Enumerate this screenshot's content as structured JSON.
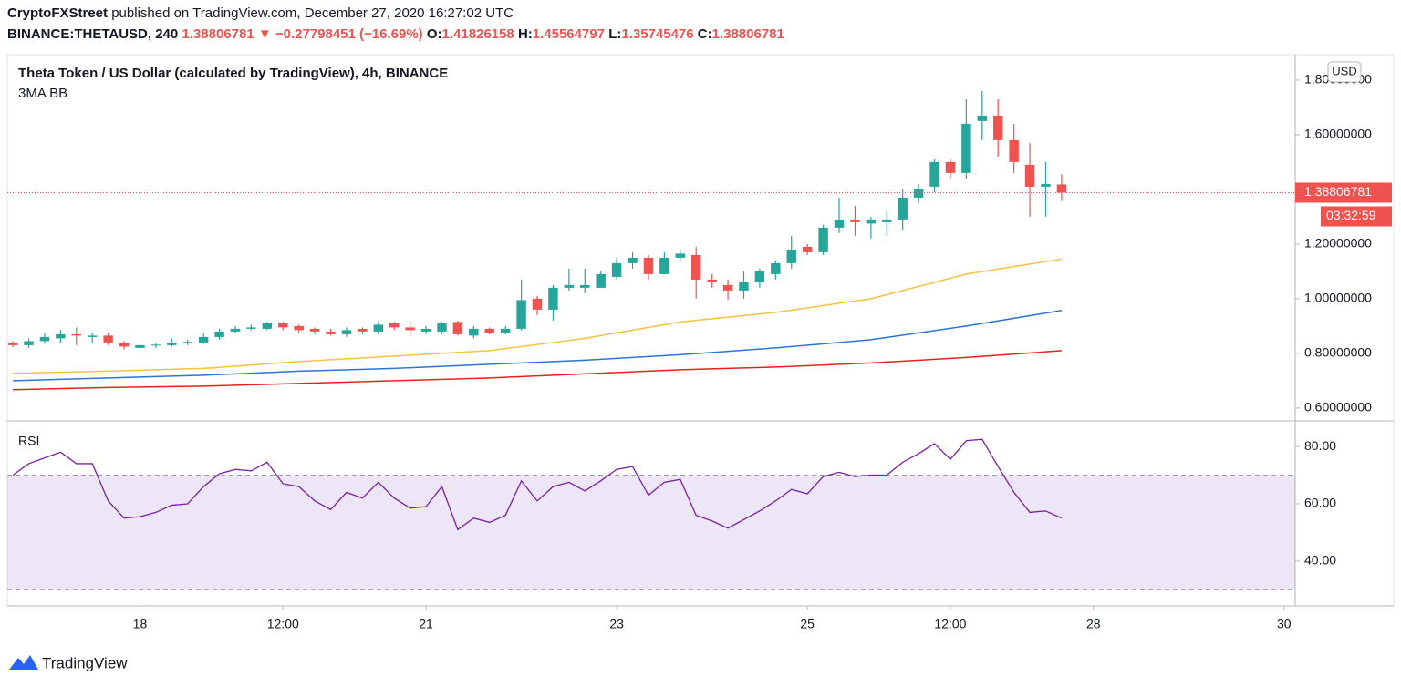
{
  "header": {
    "publisher": "CryptoFXStreet",
    "published": "published on TradingView.com, December 27, 2020 16:27:02 UTC",
    "symbol": "BINANCE:THETAUSD, 240",
    "last": "1.38806781",
    "change": "▼ −0.27798451 (−16.69%)",
    "ohlc_labels": [
      "O:",
      "H:",
      "L:",
      "C:"
    ]
  },
  "footer": {
    "brand": "TradingView"
  },
  "chart_data": [
    {
      "type": "candlestick",
      "title": "Theta Token / US Dollar (calculated by TradingView), 4h, BINANCE",
      "subtitle": "3MA BB",
      "currency": "USD",
      "last_label": "1.38806781",
      "countdown": "03:32:59",
      "up_color": "#26a69a",
      "down_color": "#ef5350",
      "grid": false,
      "open": [
        0.84,
        0.83,
        0.845,
        0.855,
        0.87,
        0.86,
        0.865,
        0.84,
        0.82,
        0.83,
        0.83,
        0.84,
        0.84,
        0.86,
        0.88,
        0.89,
        0.89,
        0.91,
        0.9,
        0.89,
        0.88,
        0.87,
        0.89,
        0.88,
        0.91,
        0.895,
        0.88,
        0.88,
        0.915,
        0.865,
        0.89,
        0.875,
        0.89,
        1.0,
        0.96,
        1.04,
        1.04,
        1.04,
        1.08,
        1.13,
        1.15,
        1.09,
        1.15,
        1.16,
        1.07,
        1.05,
        1.03,
        1.06,
        1.09,
        1.13,
        1.19,
        1.17,
        1.26,
        1.29,
        1.275,
        1.28,
        1.29,
        1.37,
        1.41,
        1.5,
        1.46,
        1.65,
        1.67,
        1.58,
        1.49,
        1.41,
        1.41826158
      ],
      "high": [
        0.845,
        0.855,
        0.875,
        0.885,
        0.895,
        0.875,
        0.875,
        0.845,
        0.84,
        0.84,
        0.855,
        0.85,
        0.875,
        0.89,
        0.9,
        0.905,
        0.915,
        0.915,
        0.905,
        0.895,
        0.89,
        0.895,
        0.895,
        0.915,
        0.915,
        0.92,
        0.9,
        0.915,
        0.92,
        0.9,
        0.895,
        0.9,
        1.07,
        1.01,
        1.05,
        1.11,
        1.11,
        1.1,
        1.15,
        1.17,
        1.16,
        1.17,
        1.18,
        1.19,
        1.09,
        1.07,
        1.1,
        1.11,
        1.14,
        1.23,
        1.2,
        1.27,
        1.37,
        1.34,
        1.3,
        1.32,
        1.4,
        1.42,
        1.51,
        1.51,
        1.73,
        1.76,
        1.73,
        1.64,
        1.57,
        1.5,
        1.45564797
      ],
      "low": [
        0.823,
        0.82,
        0.835,
        0.84,
        0.83,
        0.84,
        0.83,
        0.815,
        0.81,
        0.82,
        0.825,
        0.83,
        0.835,
        0.85,
        0.875,
        0.885,
        0.885,
        0.885,
        0.875,
        0.87,
        0.865,
        0.86,
        0.87,
        0.87,
        0.885,
        0.865,
        0.87,
        0.87,
        0.865,
        0.855,
        0.87,
        0.87,
        0.885,
        0.94,
        0.92,
        1.03,
        1.02,
        1.04,
        1.07,
        1.11,
        1.07,
        1.09,
        1.14,
        1.0,
        1.04,
        0.995,
        1.0,
        1.04,
        1.07,
        1.11,
        1.16,
        1.16,
        1.24,
        1.23,
        1.22,
        1.23,
        1.25,
        1.35,
        1.39,
        1.44,
        1.44,
        1.58,
        1.52,
        1.46,
        1.3,
        1.3,
        1.35745476
      ],
      "close": [
        0.83,
        0.845,
        0.86,
        0.87,
        0.865,
        0.865,
        0.84,
        0.825,
        0.83,
        0.832,
        0.84,
        0.842,
        0.86,
        0.88,
        0.89,
        0.895,
        0.91,
        0.895,
        0.885,
        0.88,
        0.87,
        0.885,
        0.88,
        0.905,
        0.895,
        0.885,
        0.89,
        0.91,
        0.87,
        0.89,
        0.875,
        0.89,
        0.995,
        0.96,
        1.04,
        1.05,
        1.05,
        1.09,
        1.13,
        1.15,
        1.09,
        1.15,
        1.165,
        1.07,
        1.06,
        1.03,
        1.06,
        1.1,
        1.13,
        1.18,
        1.17,
        1.26,
        1.29,
        1.28,
        1.29,
        1.29,
        1.37,
        1.4,
        1.5,
        1.46,
        1.64,
        1.67,
        1.58,
        1.5,
        1.41,
        1.42,
        1.38806781
      ],
      "series": [
        {
          "color": "#f5c242",
          "x": [
            0,
            6,
            12,
            18,
            24,
            30,
            36,
            42,
            48,
            54,
            60,
            66
          ],
          "values": [
            0.727,
            0.735,
            0.745,
            0.77,
            0.79,
            0.81,
            0.855,
            0.915,
            0.95,
            1.0,
            1.09,
            1.145
          ]
        },
        {
          "color": "#2a76d2",
          "x": [
            0,
            6,
            12,
            18,
            24,
            30,
            36,
            42,
            48,
            54,
            60,
            66
          ],
          "values": [
            0.7,
            0.71,
            0.72,
            0.735,
            0.745,
            0.76,
            0.775,
            0.795,
            0.82,
            0.85,
            0.9,
            0.957
          ]
        },
        {
          "color": "#e8211d",
          "x": [
            0,
            6,
            12,
            18,
            24,
            30,
            36,
            42,
            48,
            54,
            60,
            66
          ],
          "values": [
            0.667,
            0.675,
            0.68,
            0.69,
            0.7,
            0.71,
            0.725,
            0.74,
            0.75,
            0.765,
            0.785,
            0.81
          ]
        }
      ],
      "xlim": [
        -0.35,
        80.7
      ],
      "xticks": [
        {
          "value": 8,
          "label": "18"
        },
        {
          "value": 17,
          "label": "12:00"
        },
        {
          "value": 26,
          "label": "21"
        },
        {
          "value": 38,
          "label": "23"
        },
        {
          "value": 50,
          "label": "25"
        },
        {
          "value": 59,
          "label": "12:00"
        },
        {
          "value": 68,
          "label": "28"
        },
        {
          "value": 80,
          "label": "30"
        }
      ],
      "ylim": [
        0.553,
        1.893
      ],
      "yticks": [
        {
          "value": 1.8,
          "label": "1.80000000"
        },
        {
          "value": 1.6,
          "label": "1.60000000"
        },
        {
          "value": 1.2,
          "label": "1.20000000"
        },
        {
          "value": 1.0,
          "label": "1.00000000"
        },
        {
          "value": 0.8,
          "label": "0.80000000"
        },
        {
          "value": 0.6,
          "label": "0.60000000"
        }
      ]
    },
    {
      "type": "line",
      "title": "RSI",
      "color": "#7b1fa2",
      "band": [
        30,
        70
      ],
      "band_color": "#7e57c2",
      "values": [
        70,
        74,
        76,
        78,
        74,
        74,
        61,
        55,
        55.5,
        57,
        59.5,
        60,
        66,
        70.5,
        72,
        71.5,
        74.5,
        67,
        66,
        61,
        58,
        64,
        62,
        67.5,
        62,
        58.5,
        59,
        66,
        51,
        55,
        53.5,
        56,
        68,
        61,
        66,
        67.5,
        64.5,
        68,
        72,
        73,
        63,
        67.5,
        68.5,
        56,
        54,
        51.5,
        54.5,
        57.5,
        61,
        65,
        63.5,
        69.5,
        71,
        69.5,
        70,
        70,
        74.5,
        77.5,
        81,
        75.5,
        82,
        82.5,
        73,
        64,
        57,
        57.5,
        55
      ],
      "ylim": [
        24.4,
        88.6
      ],
      "yticks": [
        {
          "value": 80,
          "label": "80.00"
        },
        {
          "value": 60,
          "label": "60.00"
        },
        {
          "value": 40,
          "label": "40.00"
        }
      ]
    }
  ]
}
